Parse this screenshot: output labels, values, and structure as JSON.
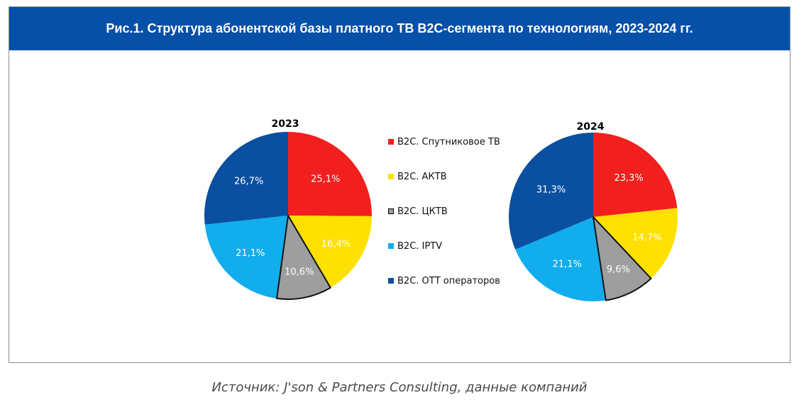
{
  "figure": {
    "title": "Рис.1. Структура абонентской базы платного ТВ B2C-сегмента по технологиям, 2023-2024 гг.",
    "source": "Источник: J'son & Partners Consulting, данные компаний"
  },
  "legend": [
    {
      "label": "B2C. Спутниковое ТВ",
      "color": "#f21f1f"
    },
    {
      "label": "B2C. АКТВ",
      "color": "#ffe000"
    },
    {
      "label": "B2C. ЦКТВ",
      "color": "#9e9e9e"
    },
    {
      "label": "B2C. IPTV",
      "color": "#11adec"
    },
    {
      "label": "B2C. ОТТ операторов",
      "color": "#0a4fa0"
    }
  ],
  "chart_data": [
    {
      "type": "pie",
      "title": "2023",
      "categories": [
        "B2C. Спутниковое ТВ",
        "B2C. АКТВ",
        "B2C. ЦКТВ",
        "B2C. IPTV",
        "B2C. ОТТ операторов"
      ],
      "values": [
        25.1,
        16.4,
        10.6,
        21.1,
        26.7
      ],
      "labels": [
        "25,1%",
        "16,4%",
        "10,6%",
        "21,1%",
        "26,7%"
      ],
      "colors": [
        "#f21f1f",
        "#ffe000",
        "#9e9e9e",
        "#11adec",
        "#0a4fa0"
      ],
      "label_colors": [
        "#ffffff",
        "#ffffff",
        "#ffffff",
        "#ffffff",
        "#ffffff"
      ],
      "start": "12 o'clock, clockwise",
      "legend_position": "between charts"
    },
    {
      "type": "pie",
      "title": "2024",
      "categories": [
        "B2C. Спутниковое ТВ",
        "B2C. АКТВ",
        "B2C. ЦКТВ",
        "B2C. IPTV",
        "B2C. ОТТ операторов"
      ],
      "values": [
        23.3,
        14.7,
        9.6,
        21.1,
        31.3
      ],
      "labels": [
        "23,3%",
        "14,7%",
        "9,6%",
        "21,1%",
        "31,3%"
      ],
      "colors": [
        "#f21f1f",
        "#ffe000",
        "#9e9e9e",
        "#11adec",
        "#0a4fa0"
      ],
      "label_colors": [
        "#ffffff",
        "#ffffff",
        "#ffffff",
        "#ffffff",
        "#ffffff"
      ],
      "start": "12 o'clock, clockwise",
      "legend_position": "between charts"
    }
  ]
}
